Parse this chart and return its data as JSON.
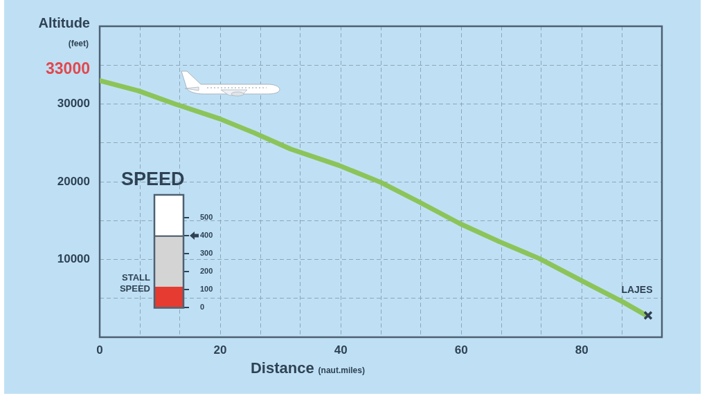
{
  "chart_data": [
    {
      "type": "line",
      "xlabel": "Distance (naut.miles)",
      "ylabel": "Altitude (feet)",
      "xlim": [
        0,
        93.3
      ],
      "xticks": [
        0,
        {
          "value": 6.7,
          "label": null
        },
        {
          "value": 13.3,
          "label": null
        },
        20,
        {
          "value": 26.7,
          "label": null
        },
        {
          "value": 33.3,
          "label": null
        },
        40,
        {
          "value": 46.7,
          "label": null
        },
        {
          "value": 53.3,
          "label": null
        },
        60,
        {
          "value": 66.7,
          "label": null
        },
        {
          "value": 73.3,
          "label": null
        },
        80,
        {
          "value": 86.7,
          "label": null
        }
      ],
      "ylim": [
        0,
        40000
      ],
      "yticks": [
        {
          "value": 0,
          "label": null
        },
        {
          "value": 5000,
          "label": null
        },
        10000,
        {
          "value": 15000,
          "label": null
        },
        20000,
        {
          "value": 25000,
          "label": null
        },
        30000,
        {
          "value": 35000,
          "label": null
        }
      ],
      "grid": true,
      "series": [
        {
          "type": "line",
          "color": "#8cc45a",
          "x": [
            0,
            6.4,
            12.5,
            19.9,
            25.6,
            31.7,
            39.7,
            46.7,
            53,
            59.8,
            66.3,
            73,
            79.9,
            86.9,
            90.5
          ],
          "values": [
            33000,
            31700,
            30000,
            28100,
            26300,
            24200,
            22100,
            19900,
            17400,
            14600,
            12300,
            10100,
            7300,
            4500,
            2900
          ],
          "value_labels": [
            "33000",
            null,
            null,
            null,
            null,
            null,
            null,
            null,
            null,
            null,
            null,
            null,
            null,
            null,
            null
          ]
        },
        {
          "type": "scatter",
          "color": "#2f3f4f",
          "marker": "cross",
          "x": [
            91
          ],
          "values": [
            2800
          ]
        }
      ],
      "annotations": [
        {
          "text": "LAJES",
          "x": 91,
          "y": 2800
        }
      ]
    },
    {
      "type": "bar",
      "title": "SPEED",
      "categories": [
        null
      ],
      "stacked": true,
      "series": [
        {
          "name": "STALL SPEED",
          "color": "#e53b30",
          "values": [
            115
          ]
        },
        {
          "color": "#d4d4d4",
          "values": [
            285
          ]
        }
      ],
      "ylim": [
        0,
        625
      ],
      "yticks": [
        0,
        100,
        200,
        300,
        400,
        500
      ]
    }
  ]
}
